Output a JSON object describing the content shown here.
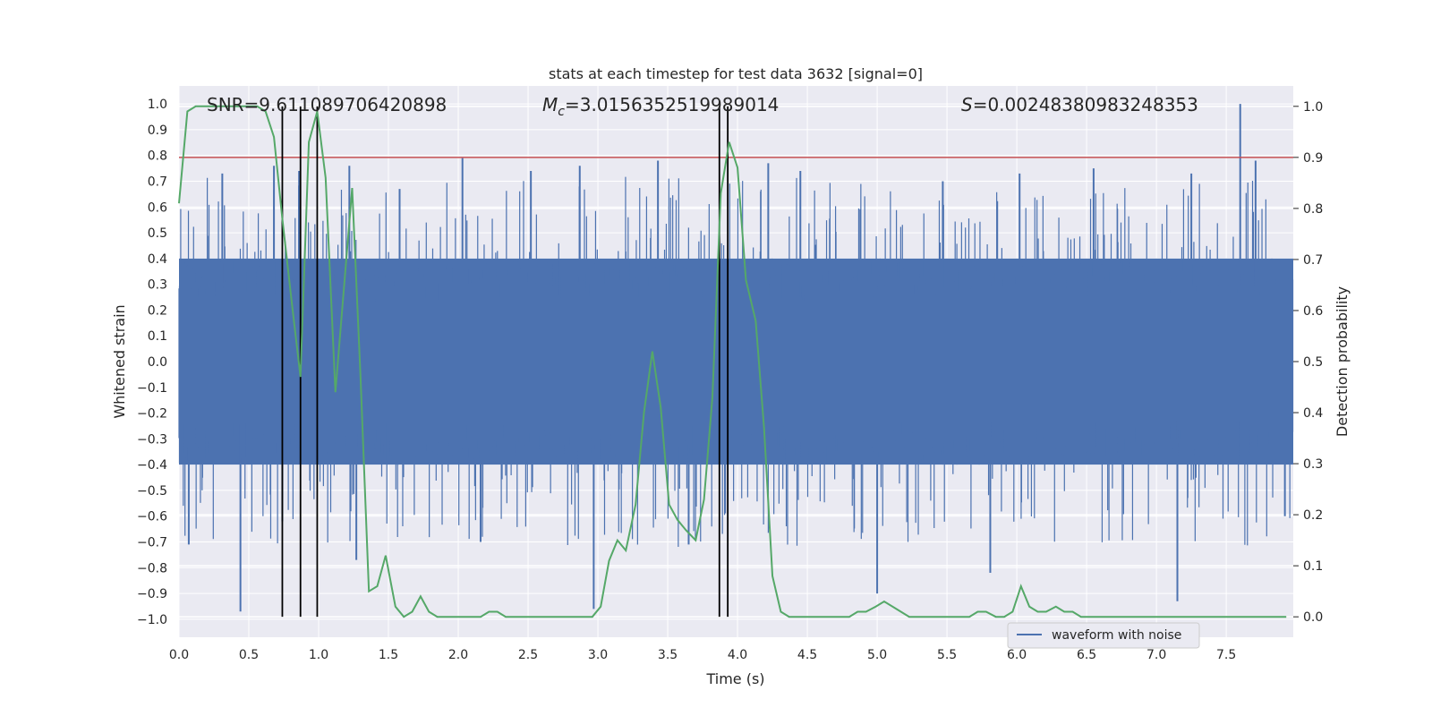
{
  "chart_data": {
    "type": "line",
    "title": "stats at each timestep for test data 3632 [signal=0]",
    "xlabel": "Time (s)",
    "ylabel_left": "Whitened strain",
    "ylabel_right": "Detection probability",
    "xlim": [
      0,
      7.98
    ],
    "ylim_left": [
      -1.07,
      1.07
    ],
    "ylim_right": [
      -0.04,
      1.04
    ],
    "x_ticks": [
      0,
      0.5,
      1,
      1.5,
      2,
      2.5,
      3,
      3.5,
      4,
      4.5,
      5,
      5.5,
      6,
      6.5,
      7,
      7.5
    ],
    "x_tick_labels": [
      "0.0",
      "0.5",
      "1.0",
      "1.5",
      "2.0",
      "2.5",
      "3.0",
      "3.5",
      "4.0",
      "4.5",
      "5.0",
      "5.5",
      "6.0",
      "6.5",
      "7.0",
      "7.5"
    ],
    "y_left_ticks": [
      -1,
      -0.9,
      -0.8,
      -0.7,
      -0.6,
      -0.5,
      -0.4,
      -0.3,
      -0.2,
      -0.1,
      0,
      0.1,
      0.2,
      0.3,
      0.4,
      0.5,
      0.6,
      0.7,
      0.8,
      0.9,
      1
    ],
    "y_left_tick_labels": [
      "−1.0",
      "−0.9",
      "−0.8",
      "−0.7",
      "−0.6",
      "−0.5",
      "−0.4",
      "−0.3",
      "−0.2",
      "−0.1",
      "0.0",
      "0.1",
      "0.2",
      "0.3",
      "0.4",
      "0.5",
      "0.6",
      "0.7",
      "0.8",
      "0.9",
      "1.0"
    ],
    "y_right_ticks": [
      0,
      0.1,
      0.2,
      0.3,
      0.4,
      0.5,
      0.6,
      0.7,
      0.8,
      0.9,
      1
    ],
    "y_right_tick_labels": [
      "0.0",
      "0.1",
      "0.2",
      "0.3",
      "0.4",
      "0.5",
      "0.6",
      "0.7",
      "0.8",
      "0.9",
      "1.0"
    ],
    "annotations": {
      "snr": "SNR=9.611089706420898",
      "mc_symbol": "M",
      "mc_sub": "c",
      "mc_value": "=3.0156352519989014",
      "s_symbol": "S",
      "s_value": "=0.00248380983248353"
    },
    "legend": {
      "label": "waveform with noise",
      "position": "lower-center"
    },
    "threshold_right": 0.9,
    "vertical_markers": [
      0.74,
      0.87,
      0.99,
      3.87,
      3.93
    ],
    "waveform": {
      "name": "waveform with noise",
      "color": "#4c72b0",
      "duration": 7.98,
      "band_upper": 0.4,
      "band_lower": -0.4,
      "spikes": [
        [
          0.44,
          -0.97
        ],
        [
          0.31,
          0.73
        ],
        [
          0.07,
          -0.71
        ],
        [
          0.68,
          0.76
        ],
        [
          0.74,
          -0.62
        ],
        [
          0.86,
          0.74
        ],
        [
          1.22,
          0.76
        ],
        [
          1.27,
          -0.77
        ],
        [
          1.58,
          0.67
        ],
        [
          2.03,
          0.79
        ],
        [
          2.16,
          -0.7
        ],
        [
          2.52,
          0.74
        ],
        [
          2.87,
          0.76
        ],
        [
          2.97,
          -0.96
        ],
        [
          3.43,
          0.78
        ],
        [
          3.65,
          -0.71
        ],
        [
          4.22,
          0.77
        ],
        [
          4.45,
          0.74
        ],
        [
          5.0,
          -0.9
        ],
        [
          5.47,
          0.7
        ],
        [
          5.81,
          -0.82
        ],
        [
          6.02,
          0.73
        ],
        [
          6.55,
          0.75
        ],
        [
          7.15,
          -0.93
        ],
        [
          7.25,
          0.73
        ],
        [
          7.6,
          1.0
        ],
        [
          7.71,
          0.78
        ],
        [
          7.92,
          -0.6
        ]
      ]
    },
    "probability": {
      "color": "#55a868",
      "x": [
        0.0,
        0.06,
        0.12,
        0.19,
        0.25,
        0.31,
        0.37,
        0.44,
        0.5,
        0.56,
        0.62,
        0.68,
        0.74,
        0.81,
        0.87,
        0.93,
        0.99,
        1.05,
        1.12,
        1.18,
        1.24,
        1.3,
        1.36,
        1.42,
        1.48,
        1.55,
        1.61,
        1.67,
        1.73,
        1.79,
        1.85,
        1.91,
        1.98,
        2.04,
        2.1,
        2.16,
        2.22,
        2.28,
        2.34,
        2.41,
        2.47,
        2.53,
        2.59,
        2.65,
        2.71,
        2.77,
        2.84,
        2.9,
        2.96,
        3.02,
        3.08,
        3.14,
        3.2,
        3.27,
        3.33,
        3.39,
        3.45,
        3.51,
        3.57,
        3.63,
        3.7,
        3.76,
        3.82,
        3.88,
        3.94,
        4.0,
        4.06,
        4.13,
        4.19,
        4.25,
        4.31,
        4.37,
        4.43,
        4.49,
        4.56,
        4.62,
        4.68,
        4.74,
        4.8,
        4.86,
        4.92,
        4.99,
        5.05,
        5.11,
        5.17,
        5.23,
        5.29,
        5.35,
        5.42,
        5.48,
        5.54,
        5.6,
        5.66,
        5.72,
        5.78,
        5.85,
        5.91,
        5.97,
        6.03,
        6.09,
        6.15,
        6.21,
        6.28,
        6.34,
        6.4,
        6.46,
        6.52,
        6.58,
        6.64,
        6.71,
        6.77,
        6.83,
        6.89,
        6.95,
        7.01,
        7.07,
        7.14,
        7.2,
        7.26,
        7.32,
        7.38,
        7.44,
        7.5,
        7.57,
        7.63,
        7.69,
        7.75,
        7.81,
        7.87,
        7.93
      ],
      "y": [
        0.81,
        0.99,
        1.0,
        1.0,
        1.0,
        1.0,
        1.0,
        1.0,
        1.0,
        1.0,
        0.99,
        0.94,
        0.78,
        0.61,
        0.47,
        0.93,
        0.99,
        0.86,
        0.44,
        0.64,
        0.84,
        0.47,
        0.05,
        0.06,
        0.12,
        0.02,
        0.0,
        0.01,
        0.04,
        0.01,
        0.0,
        0.0,
        0.0,
        0.0,
        0.0,
        0.0,
        0.01,
        0.01,
        0.0,
        0.0,
        0.0,
        0.0,
        0.0,
        0.0,
        0.0,
        0.0,
        0.0,
        0.0,
        0.0,
        0.02,
        0.11,
        0.15,
        0.13,
        0.22,
        0.4,
        0.52,
        0.41,
        0.22,
        0.19,
        0.17,
        0.15,
        0.23,
        0.43,
        0.83,
        0.93,
        0.88,
        0.66,
        0.58,
        0.37,
        0.08,
        0.01,
        0.0,
        0.0,
        0.0,
        0.0,
        0.0,
        0.0,
        0.0,
        0.0,
        0.01,
        0.01,
        0.02,
        0.03,
        0.02,
        0.01,
        0.0,
        0.0,
        0.0,
        0.0,
        0.0,
        0.0,
        0.0,
        0.0,
        0.01,
        0.01,
        0.0,
        0.0,
        0.01,
        0.06,
        0.02,
        0.01,
        0.01,
        0.02,
        0.01,
        0.01,
        0.0,
        0.0,
        0.0,
        0.0,
        0.0,
        0.0,
        0.0,
        0.0,
        0.0,
        0.0,
        0.0,
        0.0,
        0.0,
        0.0,
        0.0,
        0.0,
        0.0,
        0.0,
        0.0,
        0.0,
        0.0,
        0.0,
        0.0,
        0.0,
        0.0
      ]
    },
    "colors": {
      "plot_background": "#eaeaf2",
      "grid": "#ffffff",
      "threshold": "#c44e52",
      "markers": "#000000"
    },
    "grid": true
  }
}
